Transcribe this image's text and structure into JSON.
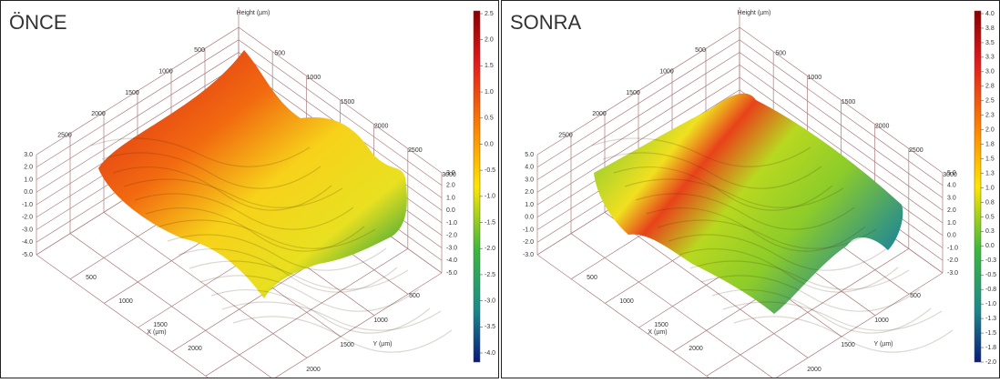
{
  "panels": [
    {
      "title": "ÖNCE",
      "colorbar_ticks": [
        "2.5",
        "2.0",
        "1.5",
        "1.0",
        "0.5",
        "0.0",
        "-0.5",
        "-1.0",
        "-1.5",
        "-2.0",
        "-2.5",
        "-3.0",
        "-3.5",
        "-4.0"
      ],
      "axis_labels": {
        "height": "Height (µm)",
        "x": "X (µm)",
        "y": "Y (µm)"
      },
      "back_left_ticks": [
        "500",
        "1000",
        "1500",
        "2000",
        "2500"
      ],
      "back_right_ticks": [
        "500",
        "1000",
        "1500",
        "2000",
        "2500",
        "3000"
      ],
      "x_ticks": [
        "500",
        "1000",
        "1500",
        "2000"
      ],
      "y_ticks": [
        "500",
        "1000",
        "1500",
        "2000"
      ],
      "z_left_ticks": [
        "3.0",
        "2.0",
        "1.0",
        "0.0",
        "-1.0",
        "-2.0",
        "-3.0",
        "-4.0",
        "-5.0"
      ],
      "z_right_ticks": [
        "3.0",
        "2.0",
        "1.0",
        "0.0",
        "-1.0",
        "-2.0",
        "-3.0",
        "-4.0",
        "-5.0"
      ]
    },
    {
      "title": "SONRA",
      "colorbar_ticks": [
        "4.0",
        "3.8",
        "3.5",
        "3.3",
        "3.0",
        "2.8",
        "2.5",
        "2.3",
        "2.0",
        "1.8",
        "1.5",
        "1.3",
        "1.0",
        "0.8",
        "0.5",
        "0.3",
        "0.0",
        "-0.3",
        "-0.5",
        "-0.8",
        "-1.0",
        "-1.3",
        "-1.5",
        "-1.8",
        "-2.0"
      ],
      "axis_labels": {
        "height": "Height (µm)",
        "x": "X (µm)",
        "y": "Y (µm)"
      },
      "back_left_ticks": [
        "500",
        "1000",
        "1500",
        "2000",
        "2500"
      ],
      "back_right_ticks": [
        "500",
        "1000",
        "1500",
        "2000",
        "2500",
        "3000"
      ],
      "x_ticks": [
        "500",
        "1000",
        "1500",
        "2000"
      ],
      "y_ticks": [
        "500",
        "1000",
        "1500",
        "2000"
      ],
      "z_left_ticks": [
        "5.0",
        "4.0",
        "3.0",
        "2.0",
        "1.0",
        "0.0",
        "-1.0",
        "-2.0",
        "-3.0"
      ],
      "z_right_ticks": [
        "5.0",
        "4.0",
        "3.0",
        "2.0",
        "1.0",
        "0.0",
        "-1.0",
        "-2.0",
        "-3.0"
      ]
    }
  ]
}
